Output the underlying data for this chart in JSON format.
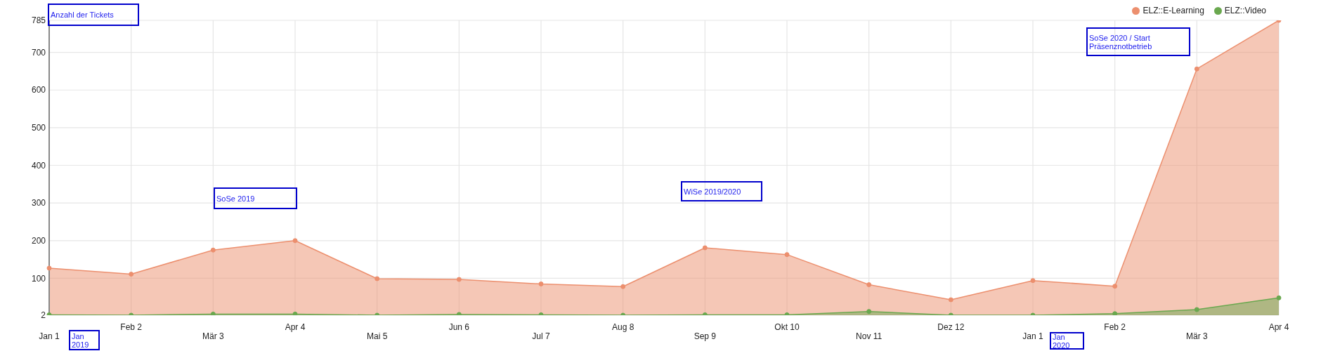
{
  "chart_data": {
    "type": "area",
    "ylabel": "Anzahl der Tickets",
    "categories": [
      "Jan 1",
      "Feb 2",
      "Mär 3",
      "Apr 4",
      "Mai 5",
      "Jun 6",
      "Jul 7",
      "Aug 8",
      "Sep 9",
      "Okt 10",
      "Nov 11",
      "Dez 12",
      "Jan 1",
      "Feb 2",
      "Mär 3",
      "Apr 4"
    ],
    "series": [
      {
        "name": "ELZ::E-Learning",
        "color": "#ec8f6e",
        "values": [
          127,
          111,
          175,
          200,
          99,
          97,
          85,
          78,
          181,
          163,
          83,
          43,
          94,
          79,
          656,
          785
        ]
      },
      {
        "name": "ELZ::Video",
        "color": "#6aa84f",
        "values": [
          3,
          2,
          5,
          5,
          2,
          4,
          3,
          2,
          3,
          3,
          12,
          2,
          2,
          6,
          17,
          48
        ]
      }
    ],
    "ylim": [
      2,
      785
    ],
    "yticks": [
      2,
      100,
      200,
      300,
      400,
      500,
      600,
      700,
      785
    ],
    "grid": true,
    "legend": "top right",
    "marker": "circle",
    "annotations": [
      "SoSe 2019",
      "WiSe 2019/2020",
      "SoSe 2020 / Start Präsenznotbetrieb",
      "Jan 2019",
      "Jan 2020"
    ]
  }
}
